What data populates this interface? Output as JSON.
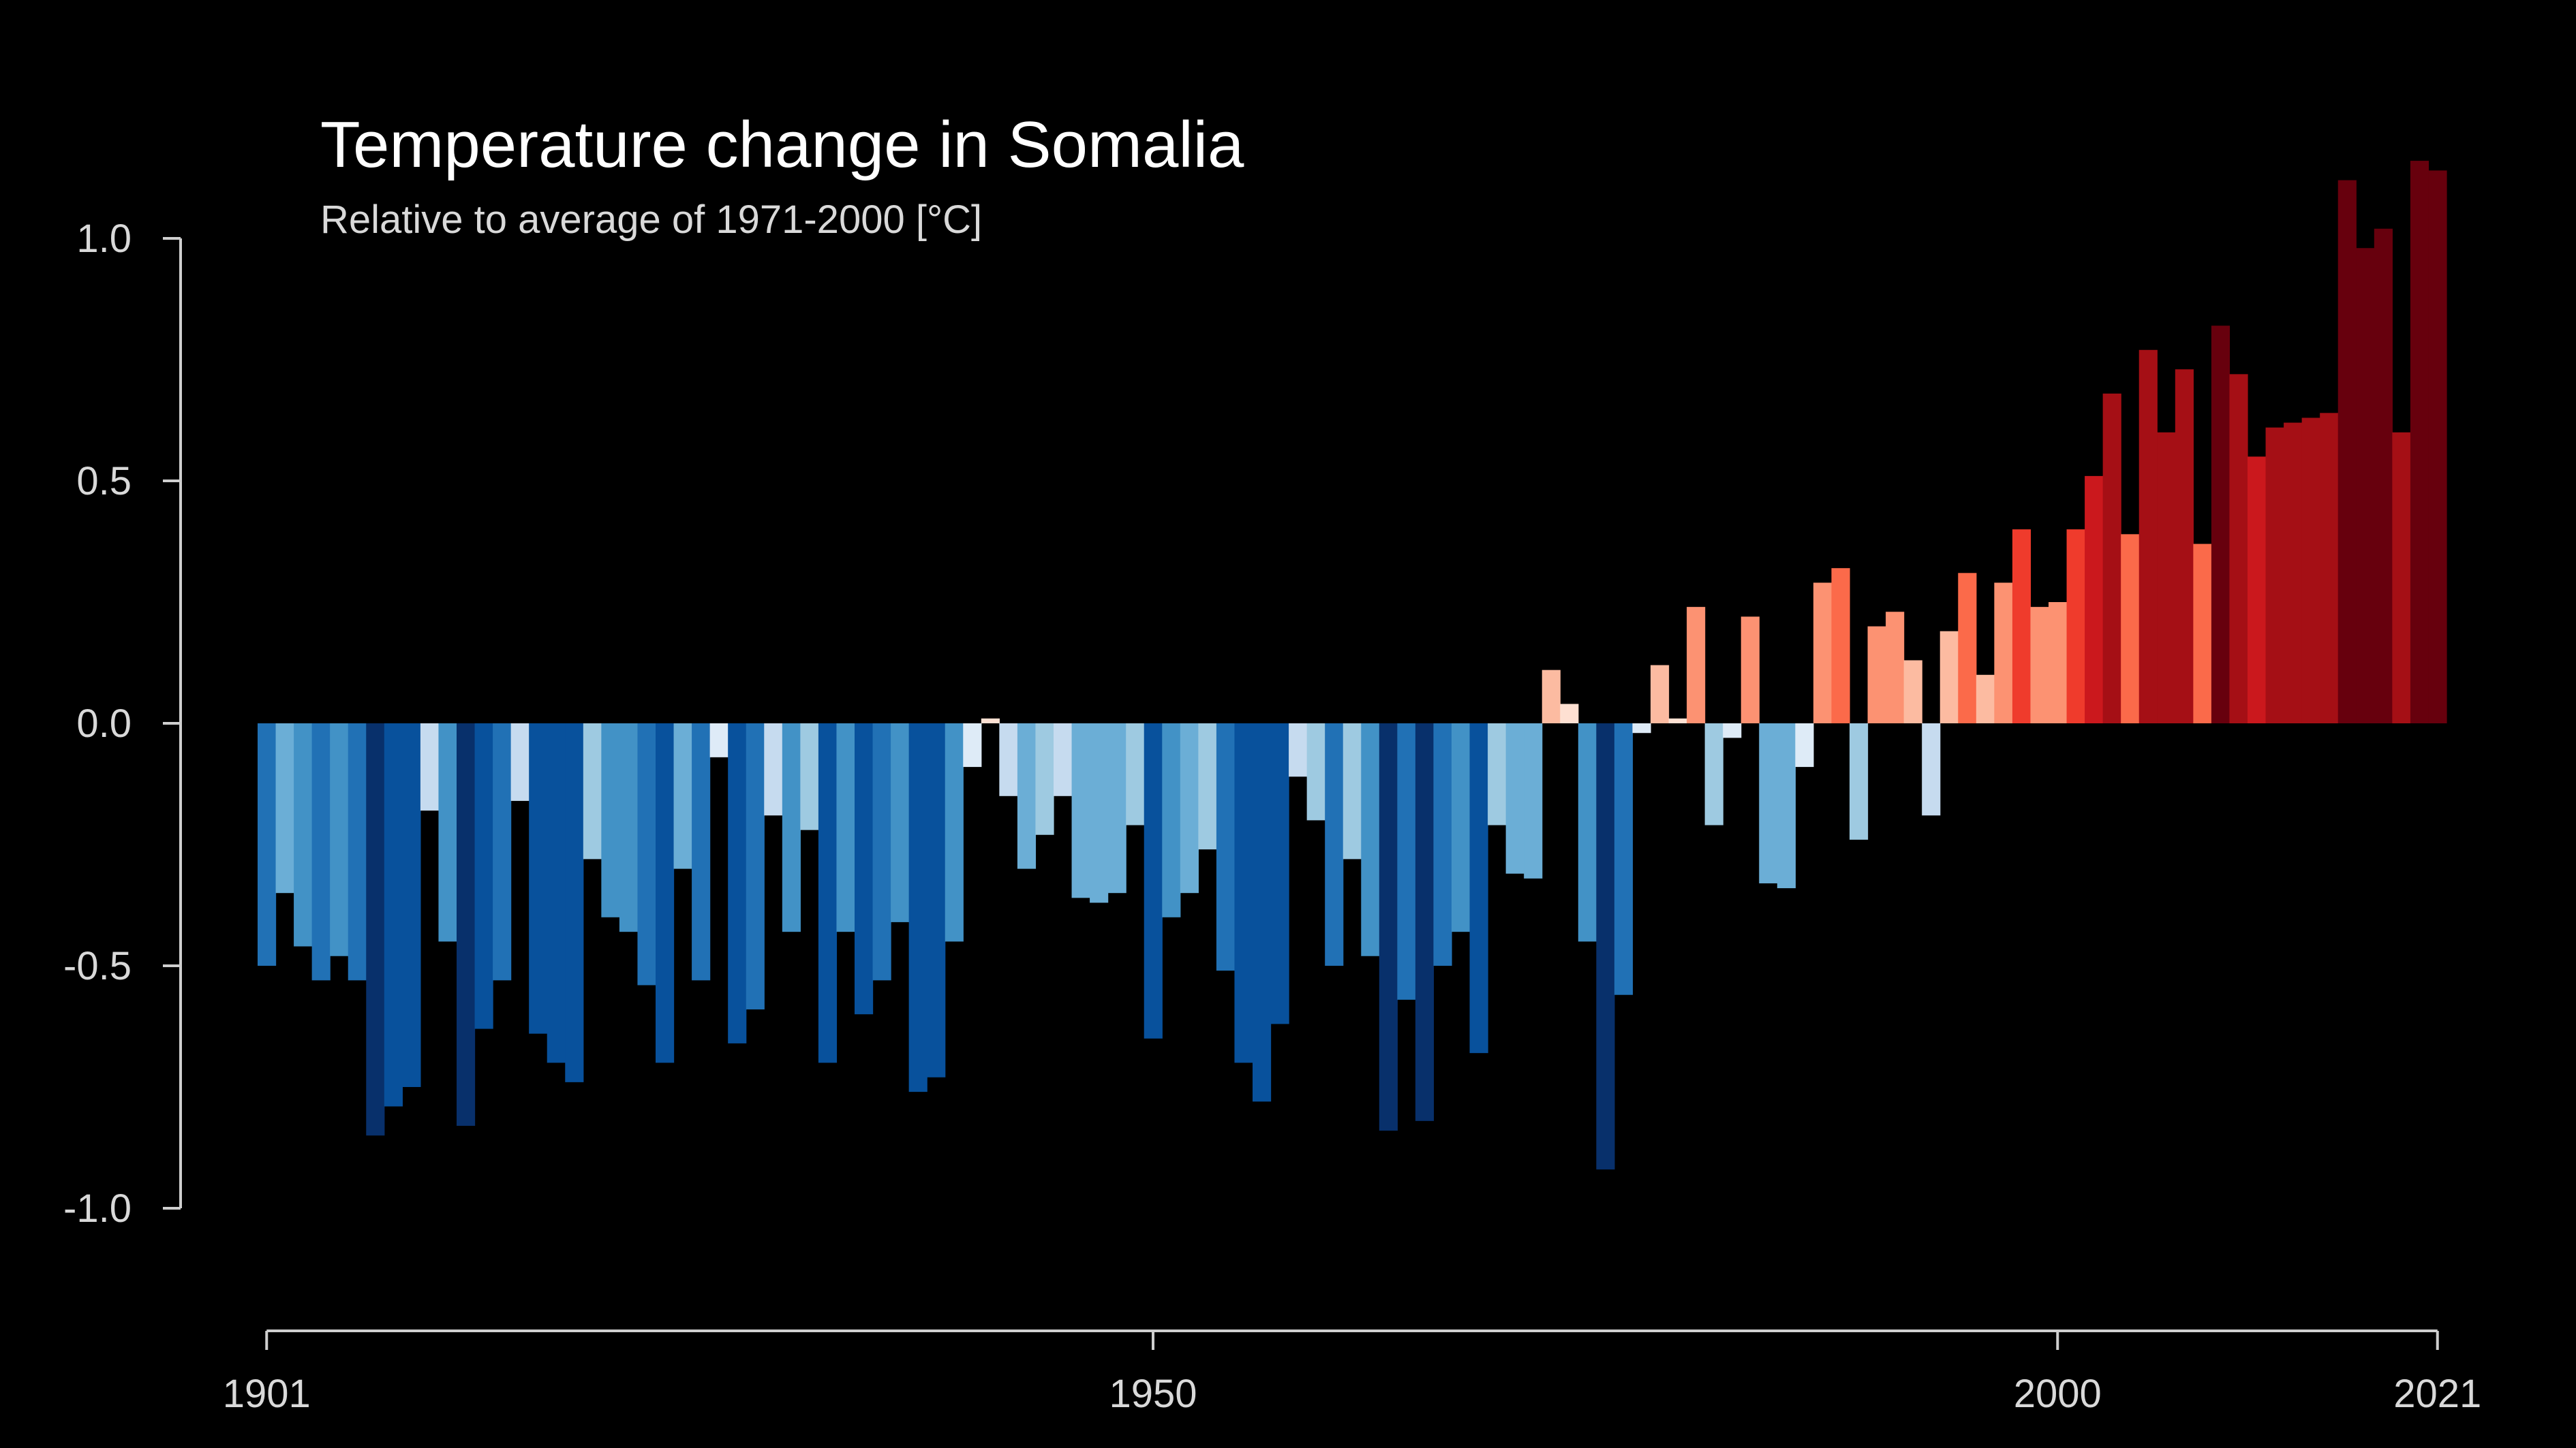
{
  "chart_data": {
    "type": "bar",
    "title": "Temperature change in Somalia",
    "subtitle": "Relative to average of 1971-2000  [°C]",
    "xlabel": "",
    "ylabel": "",
    "x_start": 1901,
    "x_end": 2021,
    "xticks": [
      1901,
      1950,
      2000,
      2021
    ],
    "yticks": [
      1.0,
      0.5,
      0.0,
      -0.5,
      -1.0
    ],
    "ytick_labels": [
      "1.0",
      "0.5",
      "0.0",
      "-0.5",
      "-1.0"
    ],
    "ylim": [
      -1.0,
      1.0
    ],
    "grid": false,
    "legend": "none",
    "values": [
      -0.5,
      -0.35,
      -0.46,
      -0.53,
      -0.48,
      -0.53,
      -0.85,
      -0.79,
      -0.75,
      -0.18,
      -0.45,
      -0.83,
      -0.63,
      -0.53,
      -0.16,
      -0.64,
      -0.7,
      -0.74,
      -0.28,
      -0.4,
      -0.43,
      -0.54,
      -0.7,
      -0.3,
      -0.53,
      -0.07,
      -0.66,
      -0.59,
      -0.19,
      -0.43,
      -0.22,
      -0.7,
      -0.43,
      -0.6,
      -0.53,
      -0.41,
      -0.76,
      -0.73,
      -0.45,
      -0.09,
      0.01,
      -0.15,
      -0.3,
      -0.23,
      -0.15,
      -0.36,
      -0.37,
      -0.35,
      -0.21,
      -0.65,
      -0.4,
      -0.35,
      -0.26,
      -0.51,
      -0.7,
      -0.78,
      -0.62,
      -0.11,
      -0.2,
      -0.5,
      -0.28,
      -0.48,
      -0.84,
      -0.57,
      -0.82,
      -0.5,
      -0.43,
      -0.68,
      -0.21,
      -0.31,
      -0.32,
      0.11,
      0.04,
      -0.45,
      -0.92,
      -0.56,
      -0.02,
      0.12,
      0.01,
      0.24,
      -0.21,
      -0.03,
      0.22,
      -0.33,
      -0.34,
      -0.09,
      0.29,
      0.32,
      -0.24,
      0.2,
      0.23,
      0.13,
      -0.19,
      0.19,
      0.31,
      0.1,
      0.29,
      0.4,
      0.24,
      0.25,
      0.4,
      0.51,
      0.68,
      0.39,
      0.77,
      0.6,
      0.73,
      0.37,
      0.82,
      0.72,
      0.55,
      0.61,
      0.62,
      0.63,
      0.64,
      1.12,
      0.98,
      1.02,
      0.6,
      1.16,
      1.14
    ],
    "color_scale": {
      "negative": [
        "#deebf7",
        "#c6dbef",
        "#9ecae1",
        "#6baed6",
        "#4292c6",
        "#2171b5",
        "#08519c",
        "#08306b"
      ],
      "positive": [
        "#fee0d2",
        "#fcbba1",
        "#fc9272",
        "#fb6a4a",
        "#ef3b2c",
        "#cb181d",
        "#a50f15",
        "#67000d"
      ],
      "steps": [
        0.1,
        0.2,
        0.3,
        0.4,
        0.5,
        0.6,
        0.8
      ]
    }
  }
}
